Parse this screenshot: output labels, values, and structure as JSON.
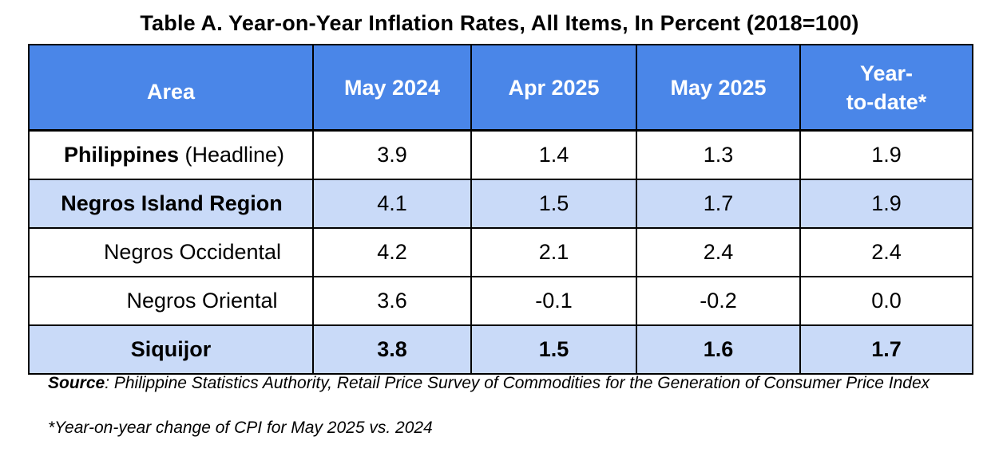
{
  "title": "Table A. Year-on-Year Inflation Rates, All Items, In Percent (2018=100)",
  "table": {
    "headers": {
      "area": "Area",
      "may_2024": "May 2024",
      "apr_2025": "Apr 2025",
      "may_2025": "May 2025",
      "ytd_line1": "Year-",
      "ytd_line2": "to-date*"
    },
    "rows": [
      {
        "area_bold": "Philippines",
        "area_rest": " (Headline)",
        "may_2024": "3.9",
        "apr_2025": "1.4",
        "may_2025": "1.3",
        "ytd": "1.9"
      },
      {
        "area_bold": "Negros Island Region",
        "may_2024": "4.1",
        "apr_2025": "1.5",
        "may_2025": "1.7",
        "ytd": "1.9"
      },
      {
        "area": "Negros Occidental",
        "may_2024": "4.2",
        "apr_2025": "2.1",
        "may_2025": "2.4",
        "ytd": "2.4"
      },
      {
        "area": "Negros Oriental",
        "may_2024": "3.6",
        "apr_2025": "-0.1",
        "may_2025": "-0.2",
        "ytd": "0.0"
      },
      {
        "area": "Siquijor",
        "may_2024": "3.8",
        "apr_2025": "1.5",
        "may_2025": "1.6",
        "ytd": "1.7"
      }
    ]
  },
  "footnotes": {
    "source_label": "Source",
    "source_text": ": Philippine Statistics Authority, Retail Price Survey of Commodities for the Generation of Consumer Price Index",
    "asterisk_note": "*Year-on-year change of CPI for May 2025 vs. 2024"
  },
  "colors": {
    "header_bg": "#4a86e8",
    "shaded_row_bg": "#c9daf8"
  }
}
